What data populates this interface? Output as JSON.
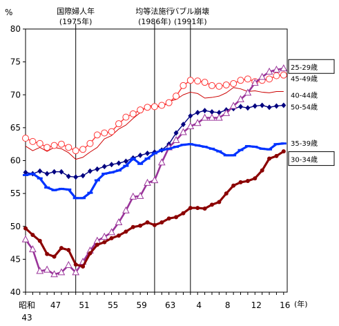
{
  "chart_data": {
    "type": "line",
    "ylabel": "%",
    "ylim": [
      40,
      80
    ],
    "yticks": [
      40,
      45,
      50,
      55,
      60,
      65,
      70,
      75,
      80
    ],
    "xlim": [
      1968,
      2004.5
    ],
    "xunit": "(年)",
    "xticks": [
      {
        "x": 1968,
        "label": "昭和",
        "label2": "43"
      },
      {
        "x": 1972,
        "label": "47"
      },
      {
        "x": 1976,
        "label": "51"
      },
      {
        "x": 1980,
        "label": "55"
      },
      {
        "x": 1984,
        "label": "59"
      },
      {
        "x": 1988,
        "label": "63"
      },
      {
        "x": 1992,
        "label": "4"
      },
      {
        "x": 1996,
        "label": "8"
      },
      {
        "x": 2000,
        "label": "12"
      },
      {
        "x": 2004,
        "label": "16"
      }
    ],
    "events": [
      {
        "x": 1975,
        "line1": "国際婦人年",
        "line2": "(1975年)"
      },
      {
        "x": 1986,
        "line1": "均等法施行",
        "line2": "(1986年)"
      },
      {
        "x": 1991,
        "line1": "バブル崩壊",
        "line2": "(1991年)"
      }
    ],
    "x": [
      1968,
      1969,
      1970,
      1971,
      1972,
      1973,
      1974,
      1975,
      1976,
      1977,
      1978,
      1979,
      1980,
      1981,
      1982,
      1983,
      1984,
      1985,
      1986,
      1987,
      1988,
      1989,
      1990,
      1991,
      1992,
      1993,
      1994,
      1995,
      1996,
      1997,
      1998,
      1999,
      2000,
      2001,
      2002,
      2003,
      2004
    ],
    "series": [
      {
        "name": "25-29歳",
        "color": "#993399",
        "marker": "triangle-up",
        "values": [
          48.0,
          46.5,
          43.2,
          43.4,
          42.7,
          43.0,
          44.1,
          43.0,
          44.6,
          46.3,
          47.8,
          48.4,
          49.1,
          50.6,
          52.4,
          54.5,
          54.6,
          56.6,
          57.0,
          59.7,
          62.0,
          63.1,
          64.3,
          65.2,
          65.7,
          66.5,
          66.5,
          66.5,
          67.2,
          68.3,
          69.3,
          70.3,
          71.8,
          72.7,
          73.5,
          73.8,
          74.0
        ]
      },
      {
        "name": "45-49歳",
        "color": "#ff3333",
        "marker": "open-circle",
        "values": [
          63.4,
          62.9,
          62.6,
          62.0,
          62.3,
          62.5,
          62.0,
          61.5,
          61.7,
          62.6,
          63.9,
          64.2,
          64.4,
          65.6,
          66.6,
          67.1,
          67.7,
          68.1,
          68.2,
          68.4,
          68.8,
          69.8,
          71.4,
          72.2,
          72.1,
          71.9,
          71.4,
          71.3,
          71.5,
          71.7,
          72.2,
          72.4,
          72.0,
          72.2,
          72.4,
          72.9,
          73.0
        ]
      },
      {
        "name": "40-44歳",
        "color": "#cc0000",
        "marker": "none",
        "values": [
          62.2,
          61.5,
          62.0,
          61.4,
          62.0,
          61.8,
          61.2,
          60.2,
          60.5,
          61.3,
          62.0,
          63.3,
          63.8,
          64.8,
          65.4,
          66.4,
          67.3,
          68.3,
          68.4,
          68.0,
          69.0,
          69.3,
          70.0,
          70.4,
          70.2,
          69.5,
          69.6,
          69.8,
          70.3,
          71.1,
          70.9,
          70.5,
          70.6,
          70.4,
          70.3,
          70.5,
          70.5
        ]
      },
      {
        "name": "50-54歳",
        "color": "#000080",
        "marker": "diamond",
        "values": [
          58.2,
          58.0,
          58.4,
          58.0,
          58.3,
          58.3,
          57.6,
          57.5,
          57.7,
          58.4,
          58.7,
          59.1,
          59.4,
          59.6,
          59.9,
          60.4,
          60.8,
          61.1,
          61.3,
          61.6,
          62.5,
          64.2,
          65.5,
          66.8,
          67.3,
          67.6,
          67.4,
          67.3,
          67.7,
          67.9,
          68.2,
          68.0,
          68.3,
          68.4,
          68.1,
          68.3,
          68.4
        ]
      },
      {
        "name": "35-39歳",
        "color": "#0033ff",
        "marker": "dash",
        "values": [
          57.8,
          58.0,
          57.3,
          55.9,
          55.5,
          55.7,
          55.6,
          54.3,
          54.3,
          55.1,
          57.0,
          58.0,
          58.2,
          58.5,
          59.2,
          60.3,
          59.5,
          60.3,
          61.1,
          61.6,
          61.8,
          62.1,
          62.4,
          62.5,
          62.3,
          62.1,
          61.8,
          61.4,
          60.8,
          60.8,
          61.6,
          62.2,
          62.1,
          61.8,
          61.7,
          62.5,
          62.6
        ]
      },
      {
        "name": "30-34歳",
        "color": "#8b0000",
        "marker": "filled-circle",
        "values": [
          49.7,
          48.7,
          47.8,
          45.8,
          45.4,
          46.7,
          46.4,
          44.2,
          43.9,
          45.9,
          47.2,
          47.6,
          48.2,
          48.6,
          49.2,
          49.9,
          50.1,
          50.6,
          50.2,
          50.6,
          51.2,
          51.4,
          52.0,
          52.8,
          52.8,
          52.7,
          53.3,
          53.7,
          55.0,
          56.2,
          56.7,
          56.9,
          57.3,
          58.5,
          60.3,
          60.7,
          61.4
        ]
      }
    ],
    "legend": [
      {
        "series": "25-29歳",
        "boxed": true,
        "y": 74.2
      },
      {
        "series": "45-49歳",
        "boxed": false,
        "y": 72.5
      },
      {
        "series": "40-44歳",
        "boxed": false,
        "y": 70.0
      },
      {
        "series": "50-54歳",
        "boxed": false,
        "y": 68.2
      },
      {
        "series": "35-39歳",
        "boxed": false,
        "y": 62.7
      },
      {
        "series": "30-34歳",
        "boxed": true,
        "y": 60.2
      }
    ]
  }
}
